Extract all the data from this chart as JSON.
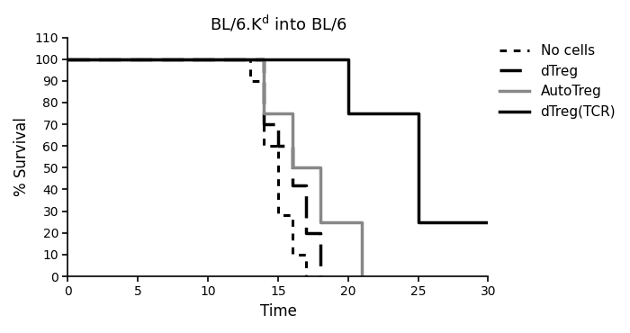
{
  "title": "BL/6.K$^d$ into BL/6",
  "xlabel": "Time",
  "ylabel": "% Survival",
  "xlim": [
    0,
    30
  ],
  "ylim": [
    0,
    110
  ],
  "xticks": [
    0,
    5,
    10,
    15,
    20,
    25,
    30
  ],
  "yticks": [
    0,
    10,
    20,
    30,
    40,
    50,
    60,
    70,
    80,
    90,
    100,
    110
  ],
  "curves": {
    "no_cells": {
      "label": "No cells",
      "color": "#000000",
      "linestyle": "dotted",
      "linewidth": 2.2,
      "x": [
        0,
        13,
        13,
        14,
        14,
        15,
        15,
        16,
        16,
        17,
        17
      ],
      "y": [
        100,
        100,
        90,
        90,
        60,
        60,
        28,
        28,
        10,
        10,
        0
      ]
    },
    "dtreg": {
      "label": "dTreg",
      "color": "#000000",
      "linestyle": "dashed",
      "linewidth": 2.5,
      "x": [
        0,
        14,
        14,
        15,
        15,
        16,
        16,
        17,
        17,
        18,
        18
      ],
      "y": [
        100,
        100,
        70,
        70,
        60,
        60,
        42,
        42,
        20,
        20,
        0
      ]
    },
    "autotreg": {
      "label": "AutoTreg",
      "color": "#888888",
      "linestyle": "solid",
      "linewidth": 2.5,
      "x": [
        0,
        14,
        14,
        16,
        16,
        18,
        18,
        20,
        20,
        21,
        21
      ],
      "y": [
        100,
        100,
        75,
        75,
        50,
        50,
        25,
        25,
        25,
        25,
        0
      ]
    },
    "dtreg_tcr": {
      "label": "dTreg(TCR)",
      "color": "#000000",
      "linestyle": "solid",
      "linewidth": 2.5,
      "x": [
        0,
        20,
        20,
        25,
        25,
        30
      ],
      "y": [
        100,
        100,
        75,
        75,
        25,
        25
      ]
    }
  },
  "legend_order": [
    "no_cells",
    "dtreg",
    "autotreg",
    "dtreg_tcr"
  ],
  "background_color": "#ffffff",
  "title_fontsize": 13,
  "axis_fontsize": 12,
  "tick_fontsize": 10,
  "legend_fontsize": 11
}
